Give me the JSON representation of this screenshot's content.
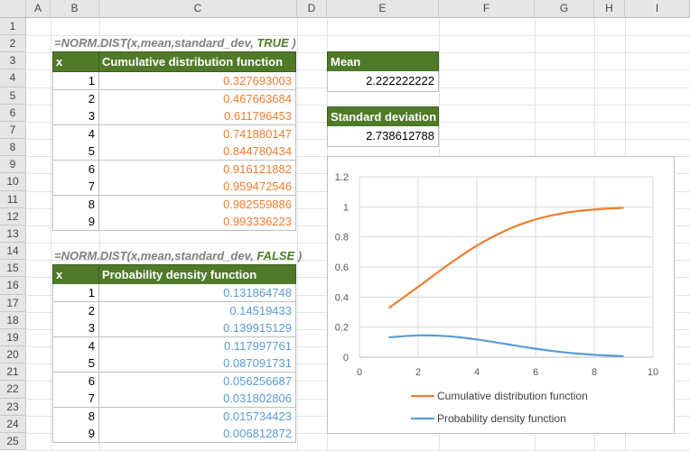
{
  "columns": [
    "A",
    "B",
    "C",
    "D",
    "E",
    "F",
    "G",
    "H",
    "I"
  ],
  "rows": [
    "1",
    "2",
    "3",
    "4",
    "5",
    "6",
    "7",
    "8",
    "9",
    "10",
    "11",
    "12",
    "13",
    "14",
    "15",
    "16",
    "17",
    "18",
    "19",
    "20",
    "21",
    "22",
    "23",
    "24",
    "25"
  ],
  "cdf": {
    "formula_prefix": "=NORM.DIST(x,mean,standard_dev, ",
    "formula_flag": "TRUE",
    "formula_suffix": " )",
    "header_x": "x",
    "header_value": "Cumulative distribution function",
    "rows": [
      {
        "x": "1",
        "v": "0.327693003"
      },
      {
        "x": "2",
        "v": "0.467663684"
      },
      {
        "x": "3",
        "v": "0.611796453"
      },
      {
        "x": "4",
        "v": "0.741880147"
      },
      {
        "x": "5",
        "v": "0.844780434"
      },
      {
        "x": "6",
        "v": "0.916121882"
      },
      {
        "x": "7",
        "v": "0.959472546"
      },
      {
        "x": "8",
        "v": "0.982559886"
      },
      {
        "x": "9",
        "v": "0.993336223"
      }
    ]
  },
  "pdf": {
    "formula_prefix": "=NORM.DIST(x,mean,standard_dev, ",
    "formula_flag": "FALSE",
    "formula_suffix": " )",
    "header_x": "x",
    "header_value": "Probability density function",
    "rows": [
      {
        "x": "1",
        "v": "0.131864748"
      },
      {
        "x": "2",
        "v": "0.14519433"
      },
      {
        "x": "3",
        "v": "0.139915129"
      },
      {
        "x": "4",
        "v": "0.117997761"
      },
      {
        "x": "5",
        "v": "0.087091731"
      },
      {
        "x": "6",
        "v": "0.056256687"
      },
      {
        "x": "7",
        "v": "0.031802806"
      },
      {
        "x": "8",
        "v": "0.015734423"
      },
      {
        "x": "9",
        "v": "0.006812872"
      }
    ]
  },
  "mean": {
    "label": "Mean",
    "value": "2.222222222"
  },
  "stdev": {
    "label": "Standard deviation",
    "value": "2.738612788"
  },
  "colors": {
    "header_green": "#4f7a28",
    "cdf_orange": "#ed7d31",
    "pdf_blue": "#5b9bd5",
    "flag_green": "#4f7a28"
  },
  "chart_data": {
    "type": "line",
    "x": [
      1,
      2,
      3,
      4,
      5,
      6,
      7,
      8,
      9
    ],
    "series": [
      {
        "name": "Cumulative distribution function",
        "color": "#ed7d31",
        "values": [
          0.327693003,
          0.467663684,
          0.611796453,
          0.741880147,
          0.844780434,
          0.916121882,
          0.959472546,
          0.982559886,
          0.993336223
        ]
      },
      {
        "name": "Probability density function",
        "color": "#5b9bd5",
        "values": [
          0.131864748,
          0.14519433,
          0.139915129,
          0.117997761,
          0.087091731,
          0.056256687,
          0.031802806,
          0.015734423,
          0.006812872
        ]
      }
    ],
    "xlim": [
      0,
      10
    ],
    "ylim": [
      0,
      1.2
    ],
    "xticks": [
      "0",
      "2",
      "4",
      "6",
      "8",
      "10"
    ],
    "yticks": [
      "0",
      "0.2",
      "0.4",
      "0.6",
      "0.8",
      "1",
      "1.2"
    ],
    "grid": true,
    "legend": "bottom"
  }
}
